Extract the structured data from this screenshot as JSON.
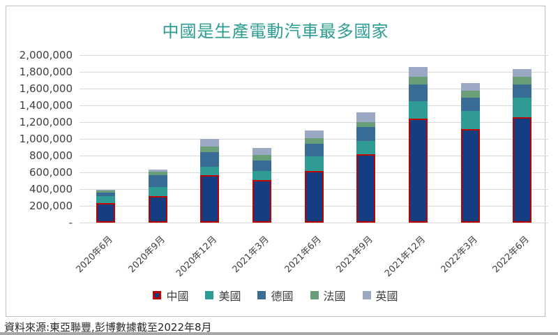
{
  "title": "中國是生產電動汽車最多國家",
  "footer": {
    "source_text": "資料來源:東亞聯豐,彭博數據截至2022年8月"
  },
  "colors": {
    "title": "#2c9c92",
    "grid": "#d9d9d9",
    "axis_text": "#404040",
    "legend_text": "#404040",
    "card_border": "#bfbfbf",
    "china_border": "#c00000"
  },
  "y_axis": {
    "tick_labels": [
      "2,000,000",
      "1,800,000",
      "1,600,000",
      "1,400,000",
      "1,200,000",
      "1,000,000",
      "800,000",
      "600,000",
      "400,000",
      "200,000",
      "-"
    ],
    "max": 2000000,
    "step": 200000
  },
  "chart_data": {
    "type": "bar",
    "stacked": true,
    "title": "中國是生產電動汽車最多國家",
    "xlabel": "",
    "ylabel": "",
    "ylim": [
      0,
      2000000
    ],
    "grid": true,
    "legend_position": "bottom",
    "categories": [
      "2020年6月",
      "2020年9月",
      "2020年12月",
      "2021年3月",
      "2021年6月",
      "2021年9月",
      "2021年12月",
      "2022年3月",
      "2022年6月"
    ],
    "series": [
      {
        "name": "中國",
        "color": "#153e80",
        "marker_border": "#c00000",
        "values": [
          230000,
          320000,
          570000,
          510000,
          615000,
          820000,
          1240000,
          1120000,
          1260000
        ]
      },
      {
        "name": "美國",
        "color": "#2e9c94",
        "values": [
          90000,
          105000,
          100000,
          110000,
          175000,
          155000,
          210000,
          215000,
          235000
        ]
      },
      {
        "name": "德國",
        "color": "#3a6d96",
        "values": [
          40000,
          140000,
          170000,
          120000,
          150000,
          165000,
          200000,
          155000,
          155000
        ]
      },
      {
        "name": "法國",
        "color": "#699e78",
        "values": [
          20000,
          40000,
          70000,
          65000,
          65000,
          60000,
          90000,
          85000,
          90000
        ]
      },
      {
        "name": "英國",
        "color": "#9ba9c4",
        "values": [
          15000,
          30000,
          90000,
          85000,
          95000,
          120000,
          120000,
          95000,
          90000
        ]
      }
    ]
  }
}
